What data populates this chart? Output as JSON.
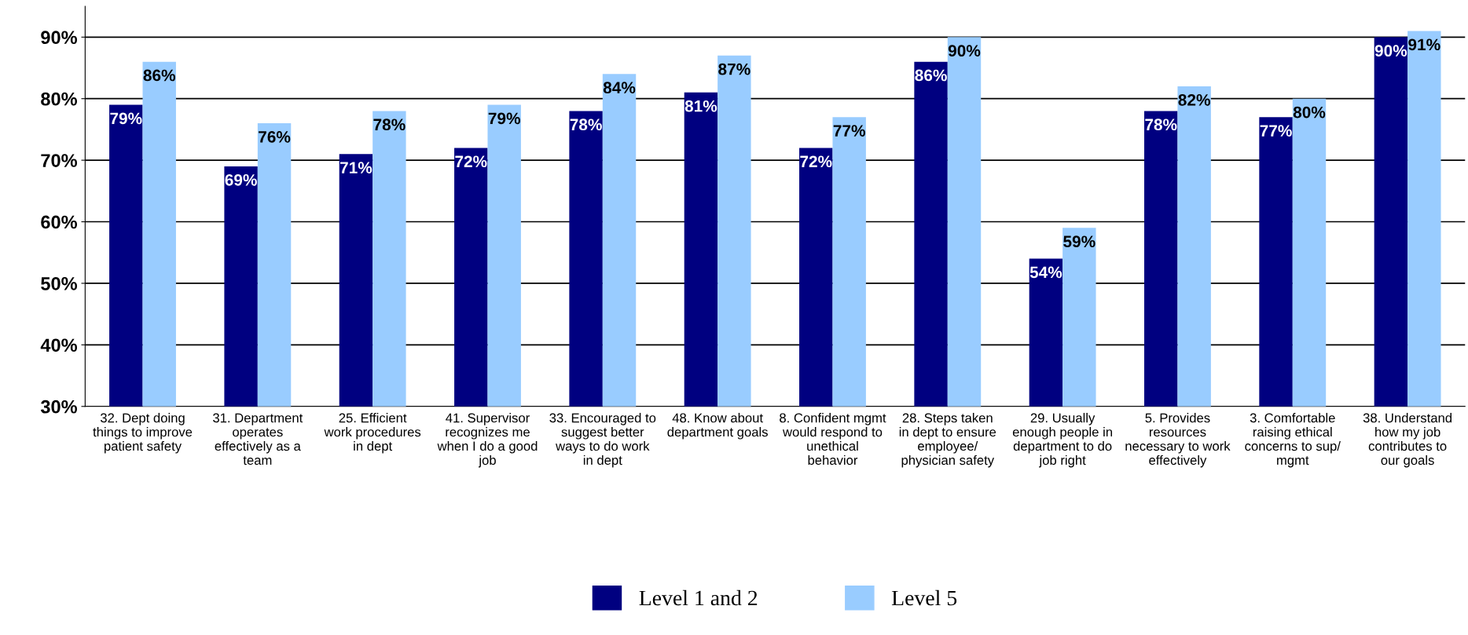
{
  "chart_data": {
    "type": "bar",
    "categories": [
      "32. Dept doing things to improve patient safety",
      "31. Department operates effectively as a team",
      "25. Efficient work procedures in dept",
      "41. Supervisor recognizes me when I do a good job",
      "33. Encouraged to suggest better ways to do work in dept",
      "48. Know about department goals",
      "8. Confident mgmt would respond to unethical behavior",
      "28. Steps taken in dept to ensure employee/ physician safety",
      "29. Usually enough people in department to do job right",
      "5. Provides resources necessary to work effectively",
      "3. Comfortable raising ethical concerns to sup/ mgmt",
      "38. Understand how my job contributes to our goals"
    ],
    "series": [
      {
        "name": "Level 1 and 2",
        "color": "#000080",
        "values": [
          79,
          69,
          71,
          72,
          78,
          81,
          72,
          86,
          54,
          78,
          77,
          90
        ],
        "value_labels": [
          "79%",
          "69%",
          "71%",
          "72%",
          "78%",
          "81%",
          "72%",
          "86%",
          "54%",
          "78%",
          "77%",
          "90%"
        ]
      },
      {
        "name": "Level 5",
        "color": "#99ccff",
        "values": [
          86,
          76,
          78,
          79,
          84,
          87,
          77,
          90,
          59,
          82,
          80,
          91
        ],
        "value_labels": [
          "86%",
          "76%",
          "78%",
          "79%",
          "84%",
          "87%",
          "77%",
          "90%",
          "59%",
          "82%",
          "80%",
          "91%"
        ]
      }
    ],
    "ylim": [
      30,
      95
    ],
    "yticks": [
      {
        "value": 30,
        "label": "30%"
      },
      {
        "value": 40,
        "label": "40%"
      },
      {
        "value": 50,
        "label": "50%"
      },
      {
        "value": 60,
        "label": "60%"
      },
      {
        "value": 70,
        "label": "70%"
      },
      {
        "value": 80,
        "label": "80%"
      },
      {
        "value": 90,
        "label": "90%"
      }
    ],
    "grid": "y",
    "legend": "bottom"
  }
}
